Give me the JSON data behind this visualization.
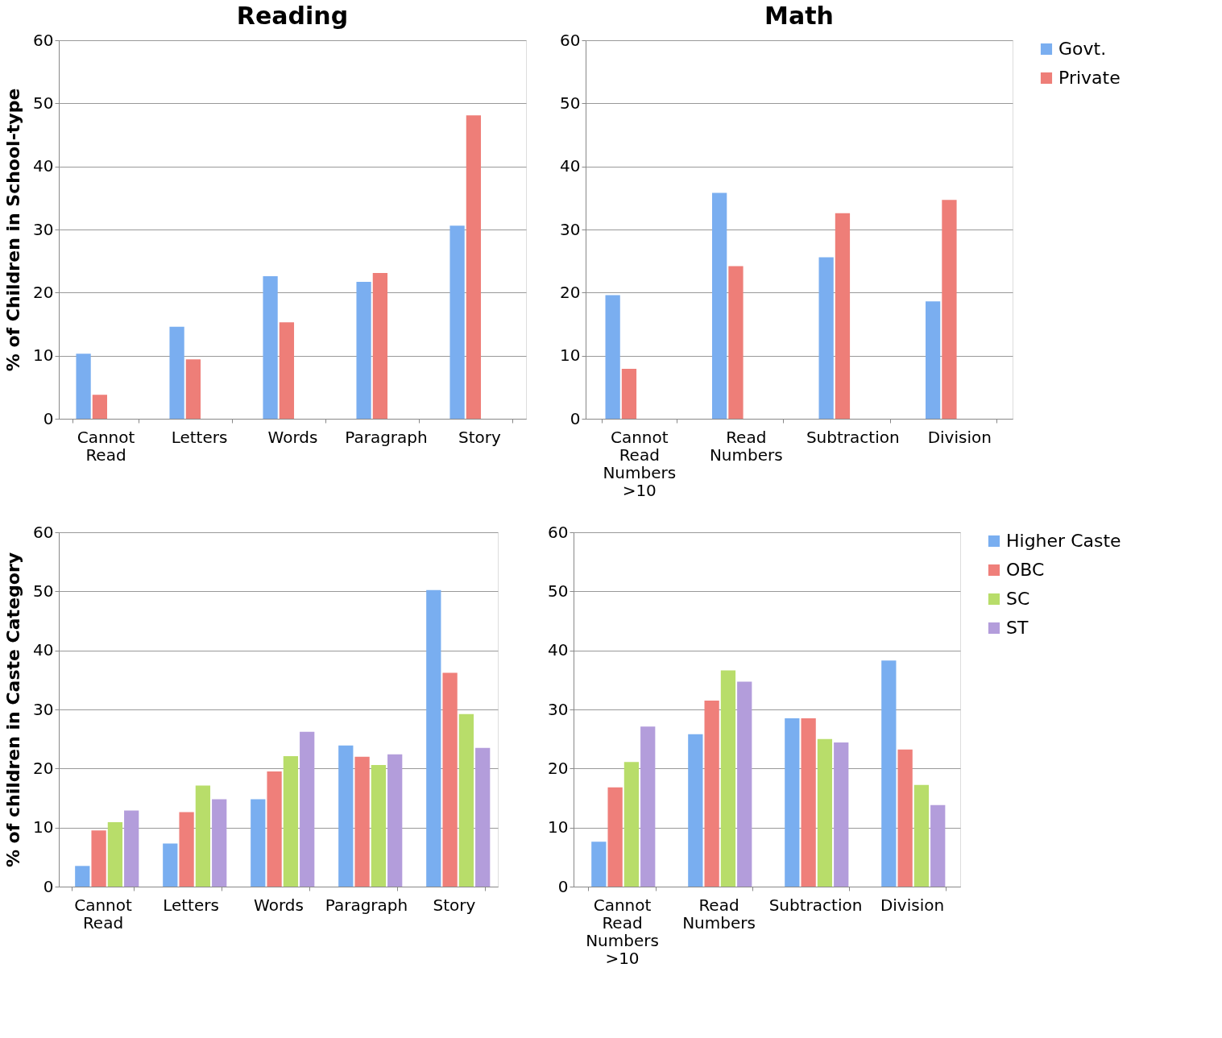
{
  "chart_data": [
    {
      "type": "bar",
      "title": "Reading",
      "ylabel": "% of Children in School-type",
      "categories": [
        "Cannot Read",
        "Letters",
        "Words",
        "Paragraph",
        "Story"
      ],
      "series": [
        {
          "name": "Govt.",
          "color": "#7aaef0",
          "values": [
            10.3,
            14.6,
            22.6,
            21.7,
            30.6
          ]
        },
        {
          "name": "Private",
          "color": "#ee7e78",
          "values": [
            3.8,
            9.4,
            15.3,
            23.1,
            48.1
          ]
        }
      ],
      "ylim": [
        0,
        60
      ],
      "yticks": [
        0,
        10,
        20,
        30,
        40,
        50,
        60
      ],
      "grid": "y",
      "legend": "right"
    },
    {
      "type": "bar",
      "title": "Math",
      "categories": [
        "Cannot Read Numbers >10",
        "Read Numbers",
        "Subtraction",
        "Division"
      ],
      "series": [
        {
          "name": "Govt.",
          "color": "#7aaef0",
          "values": [
            19.6,
            35.8,
            25.6,
            18.6
          ]
        },
        {
          "name": "Private",
          "color": "#ee7e78",
          "values": [
            7.9,
            24.2,
            32.6,
            34.7
          ]
        }
      ],
      "ylim": [
        0,
        60
      ],
      "yticks": [
        0,
        10,
        20,
        30,
        40,
        50,
        60
      ],
      "grid": "y",
      "legend": "right"
    },
    {
      "type": "bar",
      "ylabel": "% of children in Caste Category",
      "categories": [
        "Cannot Read",
        "Letters",
        "Words",
        "Paragraph",
        "Story"
      ],
      "series": [
        {
          "name": "Higher Caste",
          "color": "#79aef0",
          "values": [
            3.5,
            7.3,
            14.8,
            23.9,
            50.2
          ]
        },
        {
          "name": "OBC",
          "color": "#ef7f7a",
          "values": [
            9.5,
            12.6,
            19.5,
            22.0,
            36.2
          ]
        },
        {
          "name": "SC",
          "color": "#b8dd6a",
          "values": [
            10.9,
            17.1,
            22.1,
            20.6,
            29.2
          ]
        },
        {
          "name": "ST",
          "color": "#b39ddb",
          "values": [
            12.9,
            14.8,
            26.2,
            22.4,
            23.5
          ]
        }
      ],
      "ylim": [
        0,
        60
      ],
      "yticks": [
        0,
        10,
        20,
        30,
        40,
        50,
        60
      ],
      "grid": "y",
      "legend": "right"
    },
    {
      "type": "bar",
      "categories": [
        "Cannot Read Numbers >10",
        "Read Numbers",
        "Subtraction",
        "Division"
      ],
      "series": [
        {
          "name": "Higher Caste",
          "color": "#79aef0",
          "values": [
            7.6,
            25.8,
            28.5,
            38.3
          ]
        },
        {
          "name": "OBC",
          "color": "#ef7f7a",
          "values": [
            16.8,
            31.5,
            28.5,
            23.2
          ]
        },
        {
          "name": "SC",
          "color": "#b8dd6a",
          "values": [
            21.1,
            36.6,
            25.0,
            17.2
          ]
        },
        {
          "name": "ST",
          "color": "#b39ddb",
          "values": [
            27.1,
            34.7,
            24.4,
            13.8
          ]
        }
      ],
      "ylim": [
        0,
        60
      ],
      "yticks": [
        0,
        10,
        20,
        30,
        40,
        50,
        60
      ],
      "grid": "y",
      "legend": "right"
    }
  ]
}
